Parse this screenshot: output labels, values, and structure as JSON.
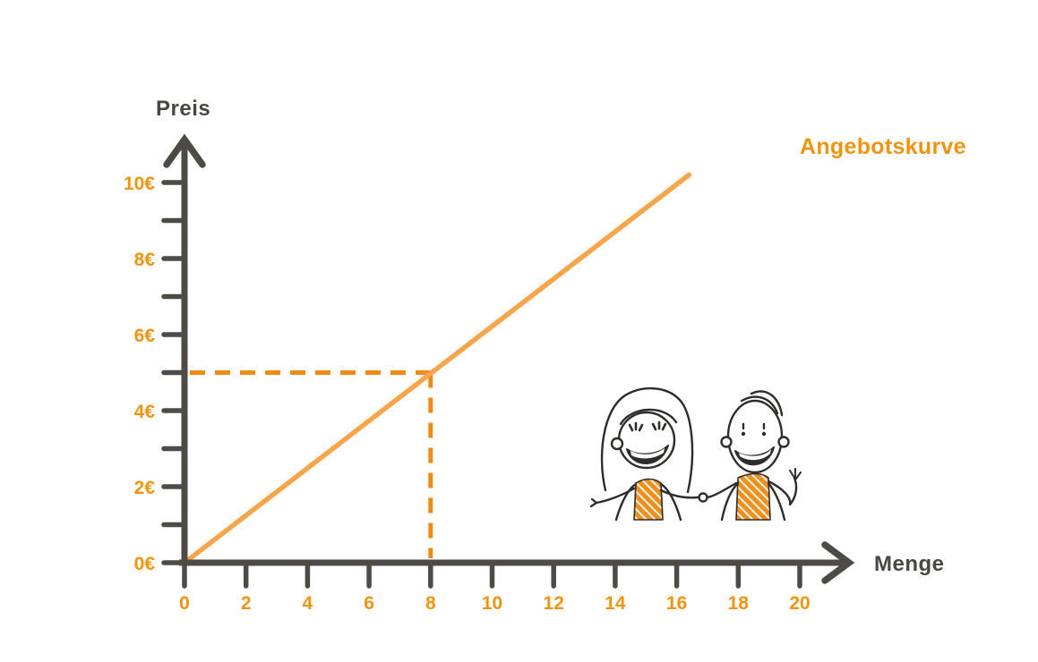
{
  "colors": {
    "axis": "#4e4a46",
    "dark_text": "#4a4743",
    "orange_label": "#f0930f",
    "supply_line": "#f7a44a",
    "dashed_guide": "#ed8b16",
    "illustration_outline": "#2e2d2b",
    "illustration_shirt_orange": "#ef8f1d"
  },
  "chart_data": {
    "type": "line",
    "title": "Angebotskurve",
    "xlabel": "Menge",
    "ylabel": "Preis",
    "xlim": [
      0,
      20
    ],
    "ylim": [
      0,
      10
    ],
    "grid": false,
    "x_ticks": [
      0,
      2,
      4,
      6,
      8,
      10,
      12,
      14,
      16,
      18,
      20
    ],
    "x_tick_labels": [
      "0",
      "2",
      "4",
      "6",
      "8",
      "10",
      "12",
      "14",
      "16",
      "18",
      "20"
    ],
    "y_ticks": [
      0,
      2,
      4,
      6,
      8,
      10
    ],
    "y_tick_labels": [
      "0€",
      "2€",
      "4€",
      "6€",
      "8€",
      "10€"
    ],
    "y_minor_ticks": [
      1,
      3,
      5,
      7,
      9
    ],
    "series": [
      {
        "name": "Angebotskurve",
        "color": "#f7a44a",
        "points": [
          [
            0,
            0
          ],
          [
            16.4,
            10.2
          ]
        ]
      }
    ],
    "annotations": [
      {
        "type": "dashed-guides",
        "point": {
          "x": 8,
          "y": 5
        },
        "color": "#ed8b16",
        "note": "dashed reference lines from price 5€ to quantity 8"
      }
    ],
    "legend_position": "none"
  },
  "illustration": {
    "name": "handshake-doodle",
    "figures": [
      "woman-left",
      "man-right"
    ]
  }
}
